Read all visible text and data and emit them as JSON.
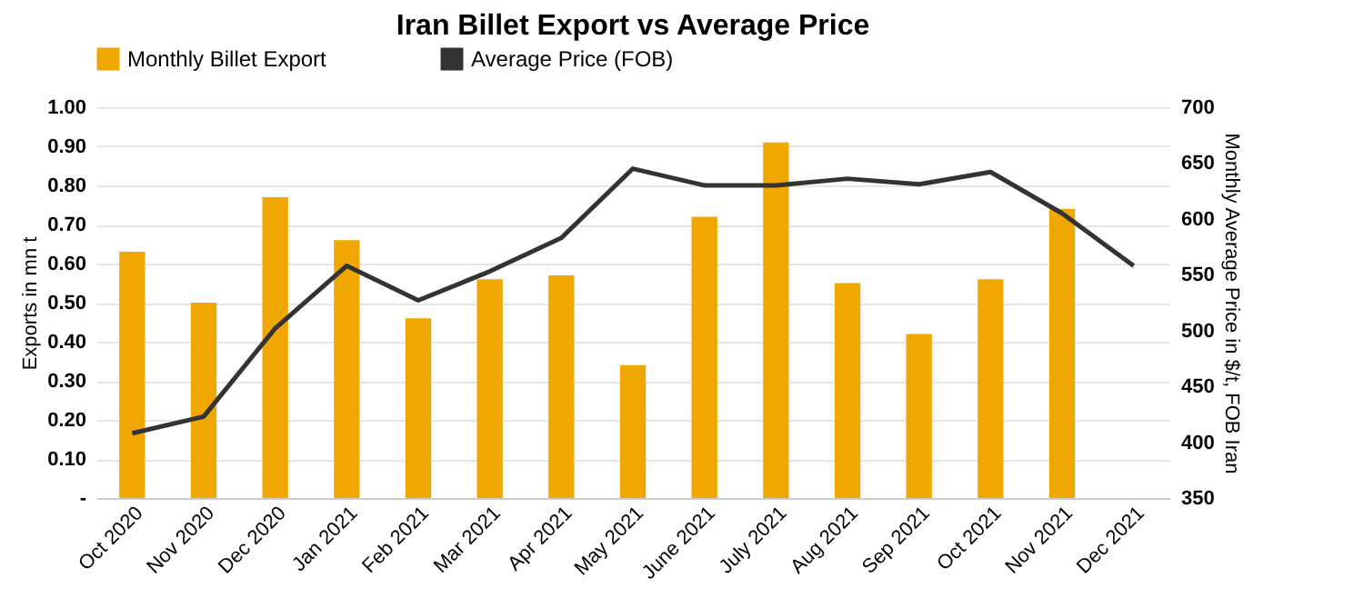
{
  "chart_data": {
    "type": "bar",
    "title": "Iran Billet Export vs Average Price",
    "categories": [
      "Oct 2020",
      "Nov 2020",
      "Dec 2020",
      "Jan 2021",
      "Feb 2021",
      "Mar 2021",
      "Apr 2021",
      "May 2021",
      "June 2021",
      "July 2021",
      "Aug 2021",
      "Sep 2021",
      "Oct 2021",
      "Nov 2021",
      "Dec 2021"
    ],
    "series": [
      {
        "name": "Monthly Billet Export",
        "color": "#f0a800",
        "values": [
          0.63,
          0.5,
          0.77,
          0.66,
          0.46,
          0.56,
          0.57,
          0.34,
          0.72,
          0.91,
          0.55,
          0.42,
          0.56,
          0.74,
          null
        ]
      },
      {
        "name": "Average Price (FOB)",
        "type": "line",
        "axis": "y2",
        "color": "#333333",
        "values": [
          408,
          423,
          502,
          558,
          527,
          553,
          583,
          645,
          630,
          630,
          636,
          631,
          642,
          605,
          558
        ]
      }
    ],
    "ylabel": "Exports in mn t",
    "y2label": "Monthly Average Price in $/t, FOB Iran",
    "ylim": [
      0,
      1.0
    ],
    "yticks": [
      {
        "value": 0,
        "label": "-"
      },
      {
        "value": 0.1,
        "label": "0.10"
      },
      {
        "value": 0.2,
        "label": "0.20"
      },
      {
        "value": 0.3,
        "label": "0.30"
      },
      {
        "value": 0.4,
        "label": "0.40"
      },
      {
        "value": 0.5,
        "label": "0.50"
      },
      {
        "value": 0.6,
        "label": "0.60"
      },
      {
        "value": 0.7,
        "label": "0.70"
      },
      {
        "value": 0.8,
        "label": "0.80"
      },
      {
        "value": 0.9,
        "label": "0.90"
      },
      {
        "value": 1.0,
        "label": "1.00"
      }
    ],
    "y2lim": [
      350,
      700
    ],
    "y2ticks": [
      350,
      400,
      450,
      500,
      550,
      600,
      650,
      700
    ],
    "grid": "y",
    "legend": "top",
    "marker": "none",
    "line_style": "solid"
  }
}
